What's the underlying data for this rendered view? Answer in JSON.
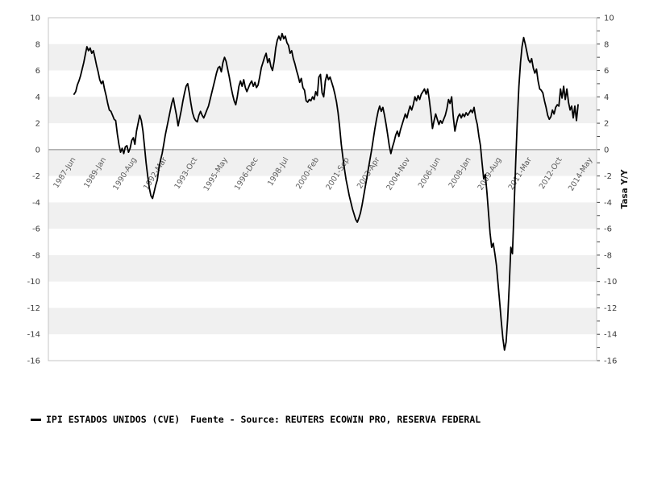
{
  "chart_data": {
    "type": "line",
    "frequency": "monthly",
    "values_start_at_tick": "1987-Jun",
    "ylim": [
      -16,
      10
    ],
    "y_ticks": [
      10,
      8,
      6,
      4,
      2,
      0,
      -2,
      -4,
      -6,
      -8,
      -10,
      -12,
      -14,
      -16
    ],
    "right_axis_label": "Tasa Y/Y",
    "x_ticks": [
      "1987-Jun",
      "1989-Jan",
      "1990-Aug",
      "1992-Mar",
      "1993-Oct",
      "1995-May",
      "1996-Dec",
      "1998-Jul",
      "2000-Feb",
      "2001-Sep",
      "2003-Apr",
      "2004-Nov",
      "2006-Jun",
      "2008-Jan",
      "2009-Aug",
      "2011-Mar",
      "2012-Oct",
      "2014-May"
    ],
    "x_tick_months": [
      0,
      19,
      38,
      57,
      76,
      95,
      114,
      133,
      152,
      171,
      190,
      209,
      228,
      247,
      266,
      285,
      304,
      323
    ],
    "x_range_months": [
      -16.1,
      326.6
    ],
    "grid": "horizontal-alternating-bands",
    "legend_position": "bottom-left",
    "series": [
      {
        "name": "IPI ESTADOS UNIDOS (CVE)",
        "values": [
          4.2,
          4.4,
          4.9,
          5.2,
          5.6,
          6.1,
          6.6,
          7.2,
          7.8,
          7.5,
          7.7,
          7.3,
          7.5,
          7.0,
          6.4,
          5.9,
          5.3,
          5.0,
          5.2,
          4.6,
          4.1,
          3.5,
          3.0,
          2.9,
          2.6,
          2.3,
          2.2,
          1.2,
          0.4,
          -0.2,
          0.1,
          -0.3,
          0.2,
          0.3,
          -0.2,
          0.1,
          0.7,
          0.9,
          0.4,
          1.4,
          2.0,
          2.6,
          2.2,
          1.4,
          0.2,
          -1.0,
          -2.0,
          -2.9,
          -3.5,
          -3.7,
          -3.2,
          -2.7,
          -2.3,
          -1.4,
          -0.8,
          -0.3,
          0.4,
          1.1,
          1.7,
          2.3,
          2.9,
          3.5,
          3.9,
          3.2,
          2.6,
          1.8,
          2.4,
          3.0,
          3.7,
          4.3,
          4.8,
          5.0,
          4.3,
          3.5,
          2.8,
          2.4,
          2.2,
          2.1,
          2.6,
          2.9,
          2.6,
          2.4,
          2.7,
          3.0,
          3.3,
          3.8,
          4.3,
          4.8,
          5.3,
          5.8,
          6.2,
          6.3,
          5.9,
          6.6,
          7.0,
          6.7,
          6.1,
          5.5,
          4.8,
          4.2,
          3.7,
          3.4,
          4.0,
          4.8,
          5.2,
          4.8,
          5.3,
          4.7,
          4.4,
          4.7,
          5.0,
          5.2,
          4.8,
          5.1,
          4.7,
          4.9,
          5.5,
          6.2,
          6.6,
          7.0,
          7.3,
          6.6,
          6.9,
          6.3,
          6.0,
          6.7,
          7.7,
          8.3,
          8.6,
          8.3,
          8.8,
          8.4,
          8.6,
          8.1,
          7.9,
          7.3,
          7.5,
          6.9,
          6.5,
          6.0,
          5.6,
          5.1,
          5.4,
          4.7,
          4.5,
          3.7,
          3.6,
          3.8,
          3.7,
          4.0,
          3.8,
          4.4,
          4.1,
          5.5,
          5.7,
          4.3,
          4.0,
          5.2,
          5.7,
          5.3,
          5.5,
          5.1,
          4.7,
          4.2,
          3.6,
          2.8,
          1.7,
          0.4,
          -0.6,
          -1.5,
          -2.3,
          -2.9,
          -3.5,
          -4.0,
          -4.5,
          -4.9,
          -5.3,
          -5.5,
          -5.2,
          -4.8,
          -4.2,
          -3.5,
          -2.8,
          -2.1,
          -1.4,
          -0.7,
          0.0,
          0.8,
          1.6,
          2.3,
          2.9,
          3.3,
          2.9,
          3.2,
          2.6,
          1.9,
          1.1,
          0.3,
          -0.3,
          0.2,
          0.6,
          1.1,
          1.4,
          1.0,
          1.5,
          1.9,
          2.3,
          2.7,
          2.4,
          2.9,
          3.3,
          3.0,
          3.4,
          4.0,
          3.7,
          4.1,
          3.8,
          4.2,
          4.4,
          4.6,
          4.2,
          4.6,
          3.8,
          2.8,
          1.6,
          2.2,
          2.7,
          2.3,
          1.9,
          2.2,
          2.0,
          2.3,
          2.6,
          3.1,
          3.8,
          3.5,
          4.0,
          2.5,
          1.4,
          2.0,
          2.5,
          2.7,
          2.4,
          2.7,
          2.5,
          2.8,
          2.6,
          2.8,
          3.0,
          2.8,
          3.2,
          2.4,
          1.9,
          1.0,
          0.3,
          -1.0,
          -2.2,
          -1.9,
          -3.2,
          -4.8,
          -6.3,
          -7.4,
          -7.1,
          -7.9,
          -8.8,
          -10.2,
          -11.6,
          -13.0,
          -14.3,
          -15.2,
          -14.6,
          -12.8,
          -10.2,
          -7.4,
          -7.9,
          -4.5,
          -1.0,
          2.2,
          4.8,
          6.6,
          7.8,
          8.5,
          8.0,
          7.4,
          6.8,
          6.6,
          6.9,
          6.2,
          5.8,
          6.1,
          5.2,
          4.6,
          4.5,
          4.3,
          3.7,
          3.2,
          2.6,
          2.3,
          2.5,
          3.0,
          2.7,
          3.2,
          3.4,
          3.3,
          4.6,
          3.9,
          4.8,
          3.8,
          4.6,
          3.6,
          3.0,
          3.3,
          2.4,
          3.3,
          2.2,
          3.4
        ]
      }
    ]
  },
  "legend": {
    "marker": "line",
    "label": "IPI ESTADOS UNIDOS (CVE)",
    "source": "Fuente - Source: REUTERS ECOWIN PRO, RESERVA FEDERAL"
  },
  "colors": {
    "line": "#000000",
    "band": "#f0f0f0",
    "zero_line": "#808080",
    "border": "#c4c4c4",
    "y_tick_text": "#3d3d3d",
    "x_tick_text": "#5c5c5c",
    "tick_mark": "#444444",
    "axis_title_text": "#1a1a1a",
    "background": "#ffffff"
  }
}
